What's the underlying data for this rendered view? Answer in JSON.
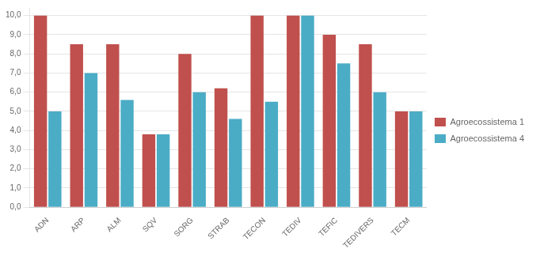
{
  "chart_data": {
    "type": "bar",
    "categories": [
      "ADN",
      "ARP",
      "ALM",
      "SQV",
      "SORG",
      "STRAB",
      "TECON",
      "TEDIV",
      "TEFIC",
      "TEDIVERS",
      "TECM"
    ],
    "series": [
      {
        "name": "Agroecossistema 1",
        "color": "#C0504D",
        "values": [
          10.0,
          8.5,
          8.5,
          3.8,
          8.0,
          6.2,
          10.0,
          10.0,
          9.0,
          8.5,
          5.0
        ]
      },
      {
        "name": "Agroecossistema 4",
        "color": "#4BACC6",
        "values": [
          5.0,
          7.0,
          5.6,
          3.8,
          6.0,
          4.6,
          5.5,
          10.0,
          7.5,
          6.0,
          5.0
        ]
      }
    ],
    "ylim": [
      0,
      10.4
    ],
    "yticks": [
      {
        "value": 0,
        "label": "0,0"
      },
      {
        "value": 1,
        "label": "1,0"
      },
      {
        "value": 2,
        "label": "2,0"
      },
      {
        "value": 3,
        "label": "3,0"
      },
      {
        "value": 4,
        "label": "4,0"
      },
      {
        "value": 5,
        "label": "5,0"
      },
      {
        "value": 6,
        "label": "6,0"
      },
      {
        "value": 7,
        "label": "7,0"
      },
      {
        "value": 8,
        "label": "8,0"
      },
      {
        "value": 9,
        "label": "9,0"
      },
      {
        "value": 10,
        "label": "10,0"
      }
    ],
    "grid": true,
    "legend": "right"
  }
}
